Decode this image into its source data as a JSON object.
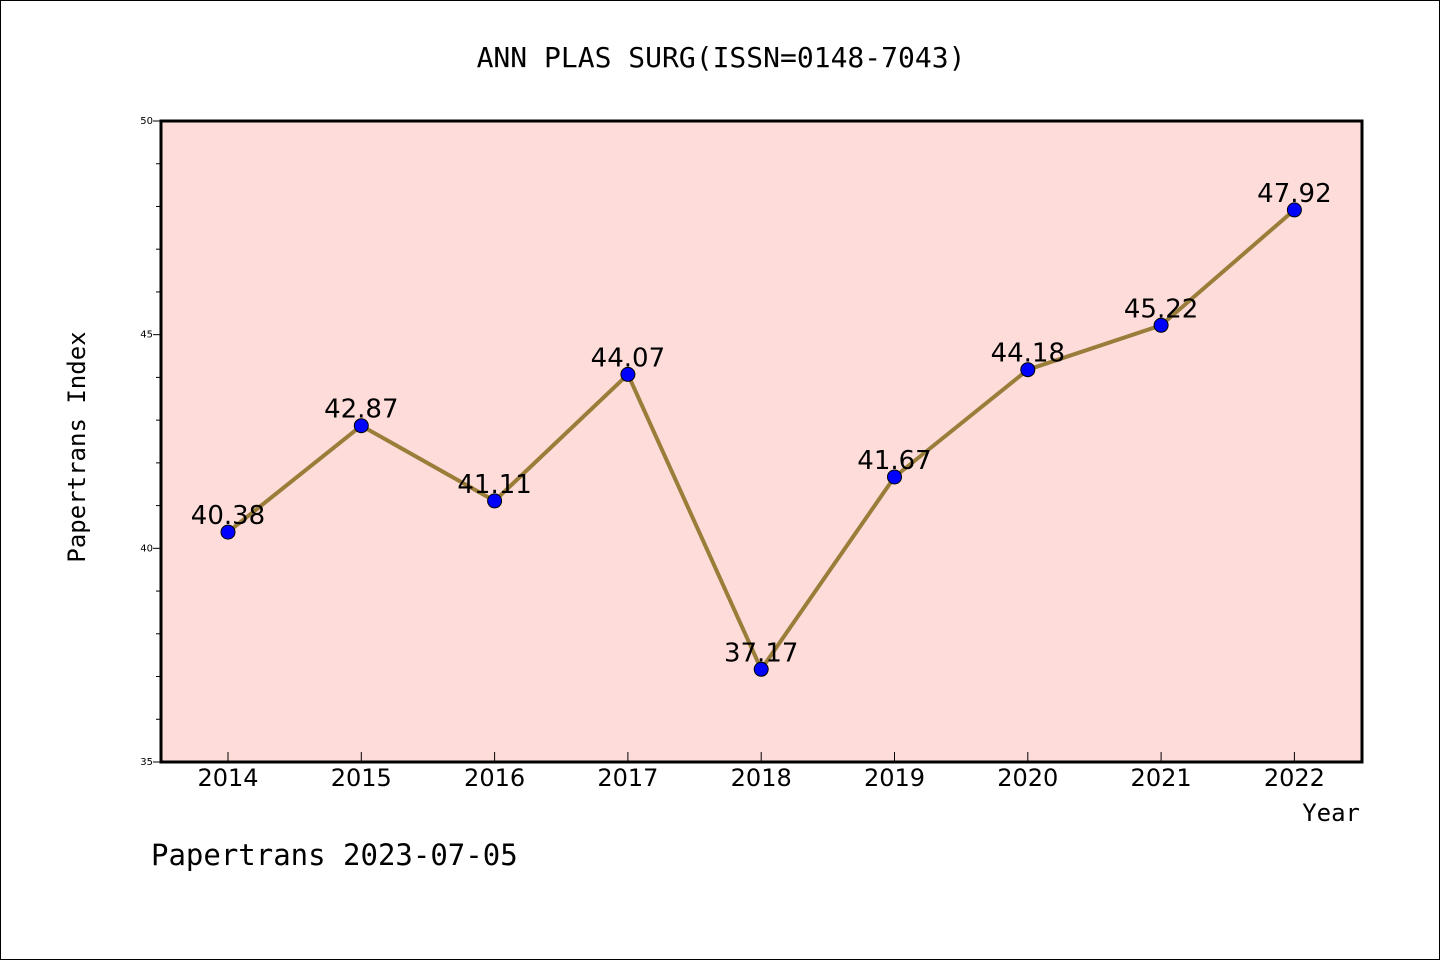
{
  "chart_data": {
    "type": "line",
    "title": "ANN PLAS SURG(ISSN=0148-7043)",
    "xlabel": "Year",
    "ylabel": "Papertrans Index",
    "footer": "Papertrans 2023-07-05",
    "categories": [
      "2014",
      "2015",
      "2016",
      "2017",
      "2018",
      "2019",
      "2020",
      "2021",
      "2022"
    ],
    "series": [
      {
        "values": [
          40.38,
          42.87,
          41.11,
          44.07,
          37.17,
          41.67,
          44.18,
          45.22,
          47.92
        ],
        "labels": [
          "40.38",
          "42.87",
          "41.11",
          "44.07",
          "37.17",
          "41.67",
          "44.18",
          "45.22",
          "47.92"
        ]
      }
    ],
    "ylim": [
      35,
      50
    ],
    "yticks": [
      "35",
      "40",
      "45",
      "50"
    ],
    "yminor_step": 1,
    "grid": false,
    "colors": {
      "plot_background": "#fddcd9",
      "line": "#9b7d3a",
      "marker": "#0000ff"
    }
  }
}
